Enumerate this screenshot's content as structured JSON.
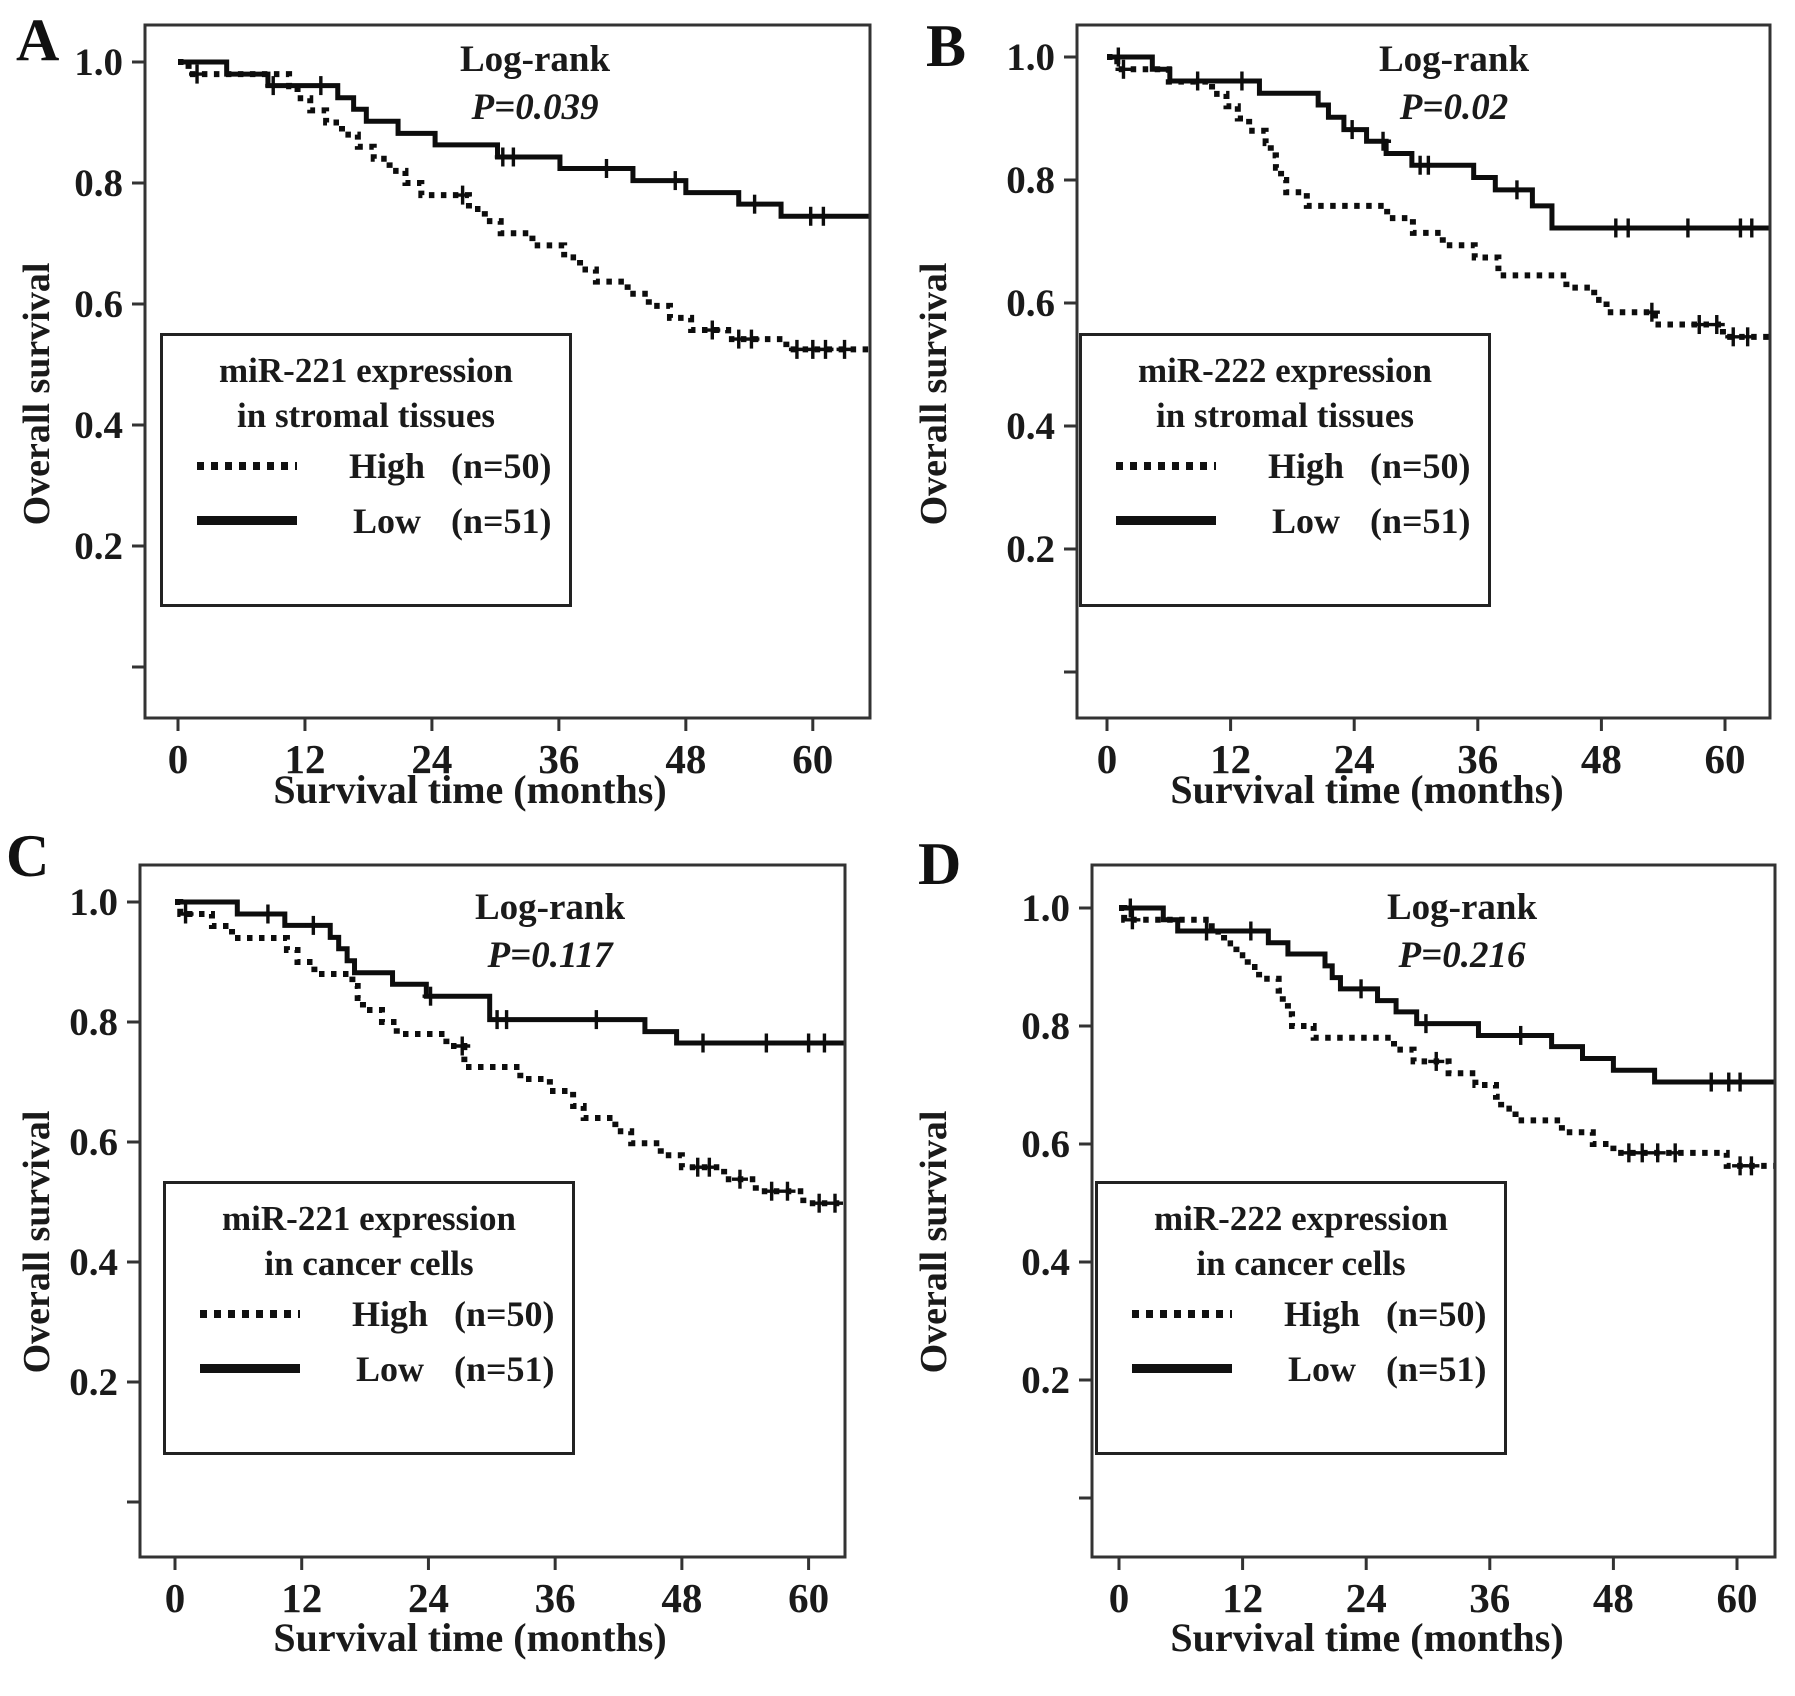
{
  "colors": {
    "curve": "#0d0d0d",
    "axis": "#333333",
    "text": "#1a1a1a",
    "background": "#ffffff"
  },
  "axes": {
    "xlabel": "Survival time (months)",
    "ylabel": "Overall survival",
    "x_ticks": [
      0,
      12,
      24,
      36,
      48,
      60
    ],
    "y_tick_labels": [
      "1.0",
      "0.8",
      "0.6",
      "0.4",
      "0.2"
    ],
    "y_tick_values": [
      1.0,
      0.8,
      0.6,
      0.4,
      0.2
    ],
    "y_unlabeled_tick": 0.0,
    "xlim": [
      0,
      65
    ],
    "ylim": [
      0,
      1.05
    ],
    "grid": false,
    "legend_position": "lower-left-box"
  },
  "chart_data": [
    {
      "type": "line",
      "subtype": "kaplan-meier",
      "panel_label": "A",
      "log_rank_label": "Log-rank",
      "p_value_text": "P=0.039",
      "legend": {
        "title_line1": "miR-221 expression",
        "title_line2": "in stromal tissues",
        "entries": [
          {
            "label": "High",
            "n_text": "(n=50)",
            "style": "dotted"
          },
          {
            "label": "Low",
            "n_text": "(n=51)",
            "style": "solid"
          }
        ]
      },
      "series": [
        {
          "name": "High",
          "n": 50,
          "line_style": "dotted",
          "start": [
            0,
            1.0
          ],
          "end_time": 65.4,
          "drops": [
            [
              1,
              0.98
            ],
            [
              10.5,
              0.96
            ],
            [
              11.3,
              0.94
            ],
            [
              12.5,
              0.92
            ],
            [
              14,
              0.9
            ],
            [
              15.5,
              0.88
            ],
            [
              17,
              0.86
            ],
            [
              18.5,
              0.84
            ],
            [
              20,
              0.82
            ],
            [
              21.5,
              0.8
            ],
            [
              23,
              0.78
            ],
            [
              27.5,
              0.757
            ],
            [
              29,
              0.737
            ],
            [
              30.5,
              0.717
            ],
            [
              33.5,
              0.697
            ],
            [
              36.5,
              0.677
            ],
            [
              38,
              0.657
            ],
            [
              39.5,
              0.637
            ],
            [
              42.5,
              0.617
            ],
            [
              44.5,
              0.597
            ],
            [
              46.5,
              0.577
            ],
            [
              48.5,
              0.557
            ],
            [
              52,
              0.542
            ],
            [
              57.5,
              0.525
            ]
          ],
          "censors": [
            [
              1.8,
              0.98
            ],
            [
              26.9,
              0.78
            ],
            [
              50.5,
              0.557
            ],
            [
              53,
              0.542
            ],
            [
              54.2,
              0.542
            ],
            [
              58.5,
              0.525
            ],
            [
              60,
              0.525
            ],
            [
              61.2,
              0.525
            ],
            [
              63,
              0.525
            ]
          ]
        },
        {
          "name": "Low",
          "n": 51,
          "line_style": "solid",
          "start": [
            0,
            1.0
          ],
          "end_time": 65.4,
          "drops": [
            [
              4.6,
              0.98
            ],
            [
              8.5,
              0.961
            ],
            [
              15.1,
              0.941
            ],
            [
              16.6,
              0.922
            ],
            [
              17.8,
              0.902
            ],
            [
              20.8,
              0.882
            ],
            [
              24.3,
              0.863
            ],
            [
              30.2,
              0.843
            ],
            [
              36.1,
              0.824
            ],
            [
              43,
              0.804
            ],
            [
              48,
              0.784
            ],
            [
              53,
              0.765
            ],
            [
              57,
              0.745
            ]
          ],
          "censors": [
            [
              9,
              0.961
            ],
            [
              13.5,
              0.961
            ],
            [
              30.7,
              0.843
            ],
            [
              31.7,
              0.843
            ],
            [
              40.5,
              0.824
            ],
            [
              47,
              0.804
            ],
            [
              54.5,
              0.765
            ],
            [
              59.8,
              0.745
            ],
            [
              61,
              0.745
            ]
          ]
        }
      ]
    },
    {
      "type": "line",
      "subtype": "kaplan-meier",
      "panel_label": "B",
      "log_rank_label": "Log-rank",
      "p_value_text": "P=0.02",
      "legend": {
        "title_line1": "miR-222 expression",
        "title_line2": "in stromal tissues",
        "entries": [
          {
            "label": "High",
            "n_text": "(n=50)",
            "style": "dotted"
          },
          {
            "label": "Low",
            "n_text": "(n=51)",
            "style": "solid"
          }
        ]
      },
      "series": [
        {
          "name": "High",
          "n": 50,
          "line_style": "dotted",
          "start": [
            0,
            1.0
          ],
          "end_time": 64.4,
          "drops": [
            [
              1,
              0.98
            ],
            [
              6,
              0.96
            ],
            [
              10.2,
              0.94
            ],
            [
              11.6,
              0.92
            ],
            [
              12.7,
              0.9
            ],
            [
              13.8,
              0.88
            ],
            [
              15.4,
              0.86
            ],
            [
              15.9,
              0.84
            ],
            [
              16.4,
              0.82
            ],
            [
              16.9,
              0.8
            ],
            [
              17.4,
              0.78
            ],
            [
              19.4,
              0.758
            ],
            [
              27.2,
              0.738
            ],
            [
              29.7,
              0.714
            ],
            [
              32.6,
              0.694
            ],
            [
              35.7,
              0.674
            ],
            [
              38,
              0.645
            ],
            [
              44.6,
              0.625
            ],
            [
              47.3,
              0.605
            ],
            [
              48.5,
              0.585
            ],
            [
              53.2,
              0.565
            ],
            [
              59.8,
              0.545
            ]
          ],
          "censors": [
            [
              1.6,
              0.98
            ],
            [
              52.9,
              0.585
            ],
            [
              57.5,
              0.565
            ],
            [
              59.2,
              0.565
            ],
            [
              60.8,
              0.545
            ],
            [
              62.2,
              0.545
            ]
          ]
        },
        {
          "name": "Low",
          "n": 51,
          "line_style": "solid",
          "start": [
            0,
            1.0
          ],
          "end_time": 64.4,
          "drops": [
            [
              4.4,
              0.98
            ],
            [
              6.1,
              0.961
            ],
            [
              14.8,
              0.941
            ],
            [
              20.5,
              0.922
            ],
            [
              21.5,
              0.902
            ],
            [
              23,
              0.882
            ],
            [
              25.2,
              0.863
            ],
            [
              27.1,
              0.843
            ],
            [
              29.6,
              0.824
            ],
            [
              35.6,
              0.804
            ],
            [
              37.7,
              0.784
            ],
            [
              41.3,
              0.758
            ],
            [
              43.2,
              0.722
            ]
          ],
          "censors": [
            [
              1.1,
              1.0
            ],
            [
              8.8,
              0.961
            ],
            [
              13.1,
              0.961
            ],
            [
              23.8,
              0.882
            ],
            [
              26.8,
              0.863
            ],
            [
              30.4,
              0.824
            ],
            [
              31.2,
              0.824
            ],
            [
              39.8,
              0.784
            ],
            [
              49.4,
              0.722
            ],
            [
              50.6,
              0.722
            ],
            [
              56.4,
              0.722
            ],
            [
              61.5,
              0.722
            ],
            [
              62.6,
              0.722
            ]
          ]
        }
      ]
    },
    {
      "type": "line",
      "subtype": "kaplan-meier",
      "panel_label": "C",
      "log_rank_label": "Log-rank",
      "p_value_text": "P=0.117",
      "legend": {
        "title_line1": "miR-221 expression",
        "title_line2": "in cancer cells",
        "entries": [
          {
            "label": "High",
            "n_text": "(n=50)",
            "style": "dotted"
          },
          {
            "label": "Low",
            "n_text": "(n=51)",
            "style": "solid"
          }
        ]
      },
      "series": [
        {
          "name": "High",
          "n": 50,
          "line_style": "dotted",
          "start": [
            0,
            1.0
          ],
          "end_time": 63.4,
          "drops": [
            [
              0.5,
              0.98
            ],
            [
              3.5,
              0.96
            ],
            [
              5.4,
              0.94
            ],
            [
              10.6,
              0.92
            ],
            [
              11.6,
              0.9
            ],
            [
              13.2,
              0.88
            ],
            [
              16.8,
              0.86
            ],
            [
              17.3,
              0.84
            ],
            [
              17.8,
              0.82
            ],
            [
              19.6,
              0.8
            ],
            [
              21,
              0.78
            ],
            [
              25.7,
              0.76
            ],
            [
              27.4,
              0.725
            ],
            [
              32.7,
              0.705
            ],
            [
              35.5,
              0.685
            ],
            [
              37.7,
              0.66
            ],
            [
              38.7,
              0.64
            ],
            [
              41.7,
              0.618
            ],
            [
              43.2,
              0.598
            ],
            [
              46,
              0.578
            ],
            [
              48,
              0.558
            ],
            [
              52,
              0.538
            ],
            [
              55,
              0.518
            ],
            [
              59.5,
              0.498
            ]
          ],
          "censors": [
            [
              1,
              0.98
            ],
            [
              27.2,
              0.76
            ],
            [
              49.5,
              0.558
            ],
            [
              50.6,
              0.558
            ],
            [
              53.5,
              0.538
            ],
            [
              56.5,
              0.518
            ],
            [
              58,
              0.518
            ],
            [
              61,
              0.498
            ],
            [
              62.5,
              0.498
            ]
          ]
        },
        {
          "name": "Low",
          "n": 51,
          "line_style": "solid",
          "start": [
            0,
            1.0
          ],
          "end_time": 63.4,
          "drops": [
            [
              5.9,
              0.98
            ],
            [
              10.4,
              0.961
            ],
            [
              14.7,
              0.941
            ],
            [
              15.5,
              0.922
            ],
            [
              16.3,
              0.902
            ],
            [
              17,
              0.882
            ],
            [
              20.6,
              0.863
            ],
            [
              23.8,
              0.843
            ],
            [
              29.8,
              0.804
            ],
            [
              44.5,
              0.784
            ],
            [
              47.5,
              0.765
            ]
          ],
          "censors": [
            [
              8.8,
              0.98
            ],
            [
              13.1,
              0.961
            ],
            [
              24.2,
              0.843
            ],
            [
              30.5,
              0.804
            ],
            [
              31.4,
              0.804
            ],
            [
              39.9,
              0.804
            ],
            [
              50,
              0.765
            ],
            [
              56,
              0.765
            ],
            [
              60,
              0.765
            ],
            [
              61.5,
              0.765
            ]
          ]
        }
      ]
    },
    {
      "type": "line",
      "subtype": "kaplan-meier",
      "panel_label": "D",
      "log_rank_label": "Log-rank",
      "p_value_text": "P=0.216",
      "legend": {
        "title_line1": "miR-222 expression",
        "title_line2": "in cancer cells",
        "entries": [
          {
            "label": "High",
            "n_text": "(n=50)",
            "style": "dotted"
          },
          {
            "label": "Low",
            "n_text": "(n=51)",
            "style": "solid"
          }
        ]
      },
      "series": [
        {
          "name": "High",
          "n": 50,
          "line_style": "dotted",
          "start": [
            0,
            1.0
          ],
          "end_time": 63.6,
          "drops": [
            [
              0.5,
              0.98
            ],
            [
              9,
              0.96
            ],
            [
              10.2,
              0.94
            ],
            [
              11.4,
              0.92
            ],
            [
              12.5,
              0.9
            ],
            [
              13.6,
              0.88
            ],
            [
              15.5,
              0.86
            ],
            [
              15.9,
              0.84
            ],
            [
              16.4,
              0.82
            ],
            [
              16.8,
              0.8
            ],
            [
              18.9,
              0.78
            ],
            [
              26.7,
              0.76
            ],
            [
              28.6,
              0.74
            ],
            [
              32,
              0.72
            ],
            [
              34.6,
              0.7
            ],
            [
              36.6,
              0.68
            ],
            [
              37.1,
              0.66
            ],
            [
              38.5,
              0.64
            ],
            [
              43,
              0.62
            ],
            [
              46,
              0.6
            ],
            [
              48,
              0.585
            ],
            [
              59,
              0.563
            ]
          ],
          "censors": [
            [
              1.3,
              0.98
            ],
            [
              30.8,
              0.74
            ],
            [
              49.5,
              0.585
            ],
            [
              50.8,
              0.585
            ],
            [
              52.3,
              0.585
            ],
            [
              54,
              0.585
            ],
            [
              60.3,
              0.563
            ],
            [
              61.4,
              0.563
            ]
          ]
        },
        {
          "name": "Low",
          "n": 51,
          "line_style": "solid",
          "start": [
            0,
            1.0
          ],
          "end_time": 63.6,
          "drops": [
            [
              4.3,
              0.98
            ],
            [
              5.7,
              0.961
            ],
            [
              14.5,
              0.941
            ],
            [
              16.4,
              0.922
            ],
            [
              20,
              0.902
            ],
            [
              20.7,
              0.882
            ],
            [
              21.5,
              0.863
            ],
            [
              25.1,
              0.843
            ],
            [
              26.9,
              0.824
            ],
            [
              28.9,
              0.804
            ],
            [
              34.9,
              0.784
            ],
            [
              42,
              0.765
            ],
            [
              45,
              0.745
            ],
            [
              48,
              0.725
            ],
            [
              52,
              0.705
            ]
          ],
          "censors": [
            [
              1.1,
              1.0
            ],
            [
              8.5,
              0.961
            ],
            [
              12.8,
              0.961
            ],
            [
              23.5,
              0.863
            ],
            [
              29.8,
              0.804
            ],
            [
              39,
              0.784
            ],
            [
              57.5,
              0.705
            ],
            [
              59.2,
              0.705
            ],
            [
              60.3,
              0.705
            ]
          ]
        }
      ]
    }
  ]
}
